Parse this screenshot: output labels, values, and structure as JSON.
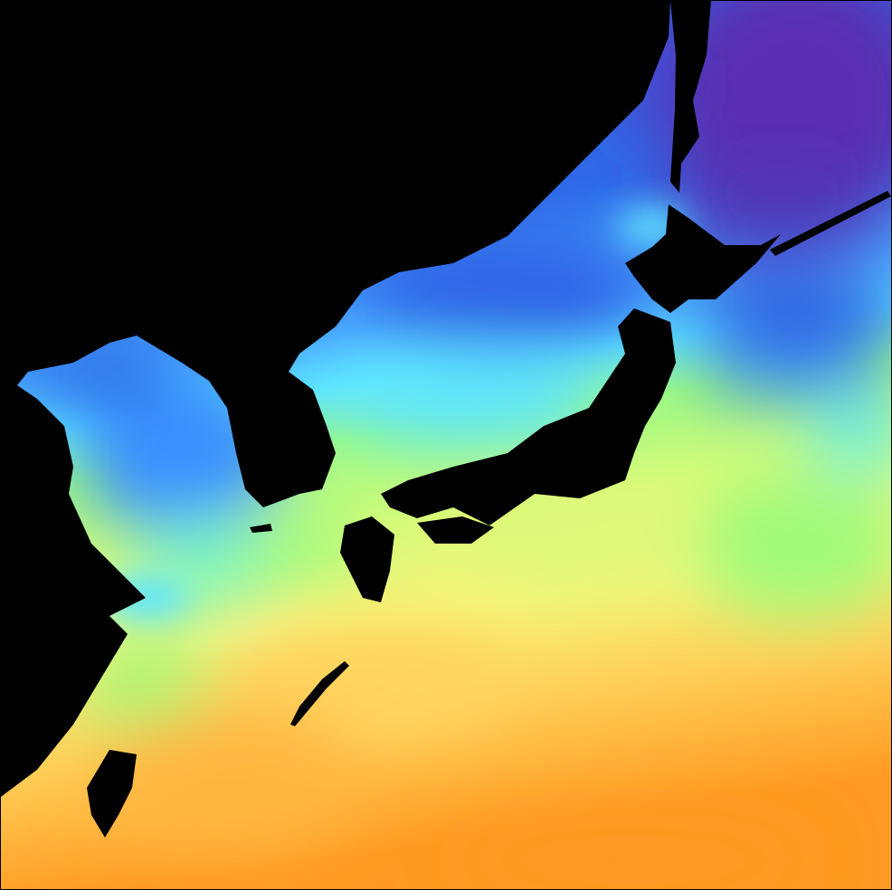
{
  "map": {
    "land_color": "#000000",
    "palette": {
      "coldest": "#5a2fb0",
      "cold": "#2f6ae8",
      "cool": "#49a8ff",
      "mild": "#5ee6ff",
      "temperate": "#9cfb80",
      "warm": "#f6f57a",
      "warmer": "#ffcc55",
      "hottest": "#ff9a22"
    }
  }
}
